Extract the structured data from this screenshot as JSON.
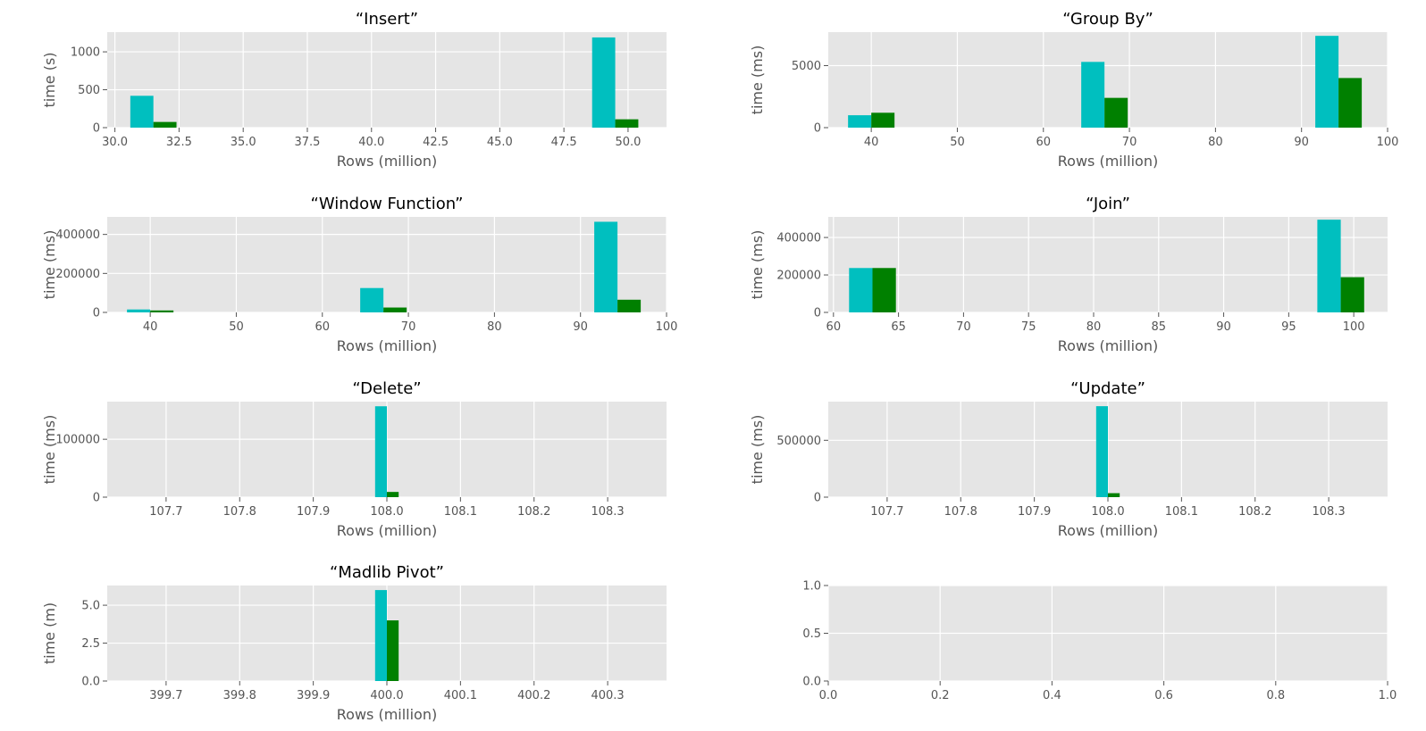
{
  "colors": {
    "series1": "#00bfbf",
    "series2": "#008000",
    "axes_bg": "#e5e5e5",
    "grid": "#ffffff",
    "tick_text": "#555555"
  },
  "chart_data": [
    {
      "type": "bar",
      "title": "“Insert”",
      "xlabel": "Rows (million)",
      "ylabel": "time (s)",
      "xlim": [
        29.7,
        51.5
      ],
      "ylim": [
        0,
        1260
      ],
      "xticks": [
        30.0,
        32.5,
        35.0,
        37.5,
        40.0,
        42.5,
        45.0,
        47.5,
        50.0
      ],
      "xtick_labels": [
        "30.0",
        "32.5",
        "35.0",
        "37.5",
        "40.0",
        "42.5",
        "45.0",
        "47.5",
        "50.0"
      ],
      "yticks": [
        0,
        500,
        1000
      ],
      "ytick_labels": [
        "0",
        "500",
        "1000"
      ],
      "series": [
        {
          "x": [
            30.6,
            48.6
          ],
          "width": 0.9,
          "values": [
            420,
            1190
          ]
        },
        {
          "x": [
            31.5,
            49.5
          ],
          "width": 0.9,
          "values": [
            75,
            110
          ]
        }
      ]
    },
    {
      "type": "bar",
      "title": "“Group By”",
      "xlabel": "Rows (million)",
      "ylabel": "time (ms)",
      "xlim": [
        35,
        100
      ],
      "ylim": [
        0,
        7700
      ],
      "xticks": [
        40,
        50,
        60,
        70,
        80,
        90,
        100
      ],
      "xtick_labels": [
        "40",
        "50",
        "60",
        "70",
        "80",
        "90",
        "100"
      ],
      "yticks": [
        0,
        5000
      ],
      "ytick_labels": [
        "0",
        "5000"
      ],
      "series": [
        {
          "x": [
            37.3,
            64.4,
            91.6
          ],
          "width": 2.7,
          "values": [
            1000,
            5300,
            7400
          ]
        },
        {
          "x": [
            40.0,
            67.1,
            94.3
          ],
          "width": 2.7,
          "values": [
            1200,
            2400,
            4000
          ]
        }
      ]
    },
    {
      "type": "bar",
      "title": "“Window Function”",
      "xlabel": "Rows (million)",
      "ylabel": "time (ms)",
      "xlim": [
        35,
        100
      ],
      "ylim": [
        0,
        490000
      ],
      "xticks": [
        40,
        50,
        60,
        70,
        80,
        90,
        100
      ],
      "xtick_labels": [
        "40",
        "50",
        "60",
        "70",
        "80",
        "90",
        "100"
      ],
      "yticks": [
        0,
        200000,
        400000
      ],
      "ytick_labels": [
        "0",
        "200000",
        "400000"
      ],
      "series": [
        {
          "x": [
            37.3,
            64.4,
            91.6
          ],
          "width": 2.7,
          "values": [
            15000,
            125000,
            465000
          ]
        },
        {
          "x": [
            40.0,
            67.1,
            94.3
          ],
          "width": 2.7,
          "values": [
            10000,
            25000,
            65000
          ]
        }
      ]
    },
    {
      "type": "bar",
      "title": "“Join”",
      "xlabel": "Rows (million)",
      "ylabel": "time (ms)",
      "xlim": [
        59.6,
        102.6
      ],
      "ylim": [
        0,
        510000
      ],
      "xticks": [
        60,
        65,
        70,
        75,
        80,
        85,
        90,
        95,
        100
      ],
      "xtick_labels": [
        "60",
        "65",
        "70",
        "75",
        "80",
        "85",
        "90",
        "95",
        "100"
      ],
      "yticks": [
        0,
        200000,
        400000
      ],
      "ytick_labels": [
        "0",
        "200000",
        "400000"
      ],
      "series": [
        {
          "x": [
            61.2,
            97.2
          ],
          "width": 1.8,
          "values": [
            237000,
            495000
          ]
        },
        {
          "x": [
            63.0,
            99.0
          ],
          "width": 1.8,
          "values": [
            237000,
            188000
          ]
        }
      ]
    },
    {
      "type": "bar",
      "title": "“Delete”",
      "xlabel": "Rows (million)",
      "ylabel": "time (ms)",
      "xlim": [
        107.62,
        108.38
      ],
      "ylim": [
        0,
        165000
      ],
      "xticks": [
        107.7,
        107.8,
        107.9,
        108.0,
        108.1,
        108.2,
        108.3
      ],
      "xtick_labels": [
        "107.7",
        "107.8",
        "107.9",
        "108.0",
        "108.1",
        "108.2",
        "108.3"
      ],
      "yticks": [
        0,
        100000
      ],
      "ytick_labels": [
        "0",
        "100000"
      ],
      "series": [
        {
          "x": [
            107.984
          ],
          "width": 0.016,
          "values": [
            157000
          ]
        },
        {
          "x": [
            108.0
          ],
          "width": 0.016,
          "values": [
            9000
          ]
        }
      ]
    },
    {
      "type": "bar",
      "title": "“Update”",
      "xlabel": "Rows (million)",
      "ylabel": "time (ms)",
      "xlim": [
        107.62,
        108.38
      ],
      "ylim": [
        0,
        840000
      ],
      "xticks": [
        107.7,
        107.8,
        107.9,
        108.0,
        108.1,
        108.2,
        108.3
      ],
      "xtick_labels": [
        "107.7",
        "107.8",
        "107.9",
        "108.0",
        "108.1",
        "108.2",
        "108.3"
      ],
      "yticks": [
        0,
        500000
      ],
      "ytick_labels": [
        "0",
        "500000"
      ],
      "series": [
        {
          "x": [
            107.984
          ],
          "width": 0.016,
          "values": [
            800000
          ]
        },
        {
          "x": [
            108.0
          ],
          "width": 0.016,
          "values": [
            35000
          ]
        }
      ]
    },
    {
      "type": "bar",
      "title": "“Madlib Pivot”",
      "xlabel": "Rows (million)",
      "ylabel": "time (m)",
      "xlim": [
        399.62,
        400.38
      ],
      "ylim": [
        0,
        6.3
      ],
      "xticks": [
        399.7,
        399.8,
        399.9,
        400.0,
        400.1,
        400.2,
        400.3
      ],
      "xtick_labels": [
        "399.7",
        "399.8",
        "399.9",
        "400.0",
        "400.1",
        "400.2",
        "400.3"
      ],
      "yticks": [
        0.0,
        2.5,
        5.0
      ],
      "ytick_labels": [
        "0.0",
        "2.5",
        "5.0"
      ],
      "series": [
        {
          "x": [
            399.984
          ],
          "width": 0.016,
          "values": [
            6.0
          ]
        },
        {
          "x": [
            400.0
          ],
          "width": 0.016,
          "values": [
            4.0
          ]
        }
      ]
    },
    {
      "type": "bar",
      "title": "",
      "xlabel": "",
      "ylabel": "",
      "xlim": [
        0,
        1
      ],
      "ylim": [
        0,
        1
      ],
      "xticks": [
        0.0,
        0.2,
        0.4,
        0.6,
        0.8,
        1.0
      ],
      "xtick_labels": [
        "0.0",
        "0.2",
        "0.4",
        "0.6",
        "0.8",
        "1.0"
      ],
      "yticks": [
        0.0,
        0.5,
        1.0
      ],
      "ytick_labels": [
        "0.0",
        "0.5",
        "1.0"
      ],
      "series": []
    }
  ]
}
